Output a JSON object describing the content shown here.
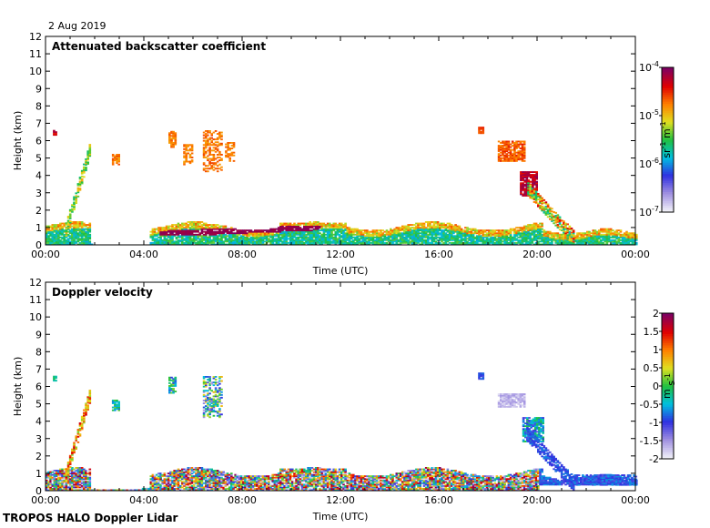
{
  "date": "2 Aug 2019",
  "footer": "TROPOS HALO Doppler Lidar",
  "chart_data": [
    {
      "type": "heatmap",
      "title": "Attenuated backscatter coefficient",
      "xlabel": "Time (UTC)",
      "ylabel": "Height (km)",
      "xlim": [
        0,
        24
      ],
      "ylim": [
        0,
        12
      ],
      "x_ticks": [
        "00:00",
        "04:00",
        "08:00",
        "12:00",
        "16:00",
        "20:00",
        "00:00"
      ],
      "y_ticks": [
        "0",
        "1",
        "2",
        "3",
        "4",
        "5",
        "6",
        "7",
        "8",
        "9",
        "10",
        "11",
        "12"
      ],
      "colorbar": {
        "scale": "log",
        "unit": "sr-1 m-1",
        "tick_labels": [
          "10-7",
          "10-6",
          "10-5",
          "10-4"
        ],
        "tick_values": [
          1e-07,
          1e-06,
          1e-05,
          0.0001
        ],
        "colormap": [
          "#f0f0f8",
          "#a090e0",
          "#3030e0",
          "#00c0e0",
          "#20c040",
          "#e0e020",
          "#ff8000",
          "#e00000",
          "#800060"
        ]
      },
      "features": [
        {
          "name": "boundary layer",
          "t": [
            0.0,
            24.0
          ],
          "z": [
            0.0,
            1.4
          ],
          "value": "1e-6"
        },
        {
          "name": "layer top 05-11 UTC",
          "t": [
            4.6,
            11.2
          ],
          "z": [
            0.5,
            1.2
          ],
          "value": "1e-4"
        },
        {
          "name": "rising plume 01 UTC",
          "t": [
            0.8,
            1.8
          ],
          "z": [
            0.5,
            5.7
          ],
          "value": "1e-5"
        },
        {
          "name": "patch 02:50",
          "t": [
            2.7,
            3.0
          ],
          "z": [
            4.6,
            5.2
          ],
          "value": "3e-5"
        },
        {
          "name": "patches 05-07:30",
          "t": [
            5.0,
            7.7
          ],
          "z": [
            4.2,
            6.6
          ],
          "value": "3e-5"
        },
        {
          "name": "patch 00:20",
          "t": [
            0.3,
            0.45
          ],
          "z": [
            6.3,
            6.6
          ],
          "value": "1e-4"
        },
        {
          "name": "cloud 18:30-19:30",
          "t": [
            18.4,
            19.5
          ],
          "z": [
            4.8,
            6.0
          ],
          "value": "3e-5"
        },
        {
          "name": "descending plume 19:30-21",
          "t": [
            19.3,
            21.5
          ],
          "z": [
            0.3,
            4.2
          ],
          "value": "1e-4"
        }
      ]
    },
    {
      "type": "heatmap",
      "title": "Doppler velocity",
      "xlabel": "Time (UTC)",
      "ylabel": "Height (km)",
      "xlim": [
        0,
        24
      ],
      "ylim": [
        0,
        12
      ],
      "x_ticks": [
        "00:00",
        "04:00",
        "08:00",
        "12:00",
        "16:00",
        "20:00",
        "00:00"
      ],
      "y_ticks": [
        "0",
        "1",
        "2",
        "3",
        "4",
        "5",
        "6",
        "7",
        "8",
        "9",
        "10",
        "11",
        "12"
      ],
      "colorbar": {
        "scale": "linear",
        "unit": "m s-1",
        "range": [
          -2,
          2
        ],
        "tick_labels": [
          "2",
          "1.5",
          "1",
          "0.5",
          "0",
          "-0.5",
          "-1",
          "-1.5",
          "-2"
        ],
        "colormap": [
          "#f0f0f8",
          "#a090e0",
          "#3030e0",
          "#00c0e0",
          "#20c040",
          "#e0e020",
          "#ff8000",
          "#e00000",
          "#800060"
        ]
      },
      "features": [
        {
          "name": "mixed layer",
          "t": [
            0.0,
            20.0
          ],
          "z": [
            0.0,
            1.3
          ],
          "value": "-2 to 2"
        },
        {
          "name": "rising plume 01 UTC",
          "t": [
            0.8,
            1.8
          ],
          "z": [
            0.5,
            5.7
          ],
          "value": "0.5 to 1.5"
        },
        {
          "name": "cloud 18:30-19:30",
          "t": [
            18.4,
            19.5
          ],
          "z": [
            4.8,
            5.6
          ],
          "value": "-2"
        },
        {
          "name": "descending plume 19:30-21",
          "t": [
            19.3,
            21.5
          ],
          "z": [
            0.3,
            4.2
          ],
          "value": "-1"
        },
        {
          "name": "evening layer",
          "t": [
            20.5,
            24.0
          ],
          "z": [
            0.3,
            0.9
          ],
          "value": "-1"
        }
      ]
    }
  ]
}
